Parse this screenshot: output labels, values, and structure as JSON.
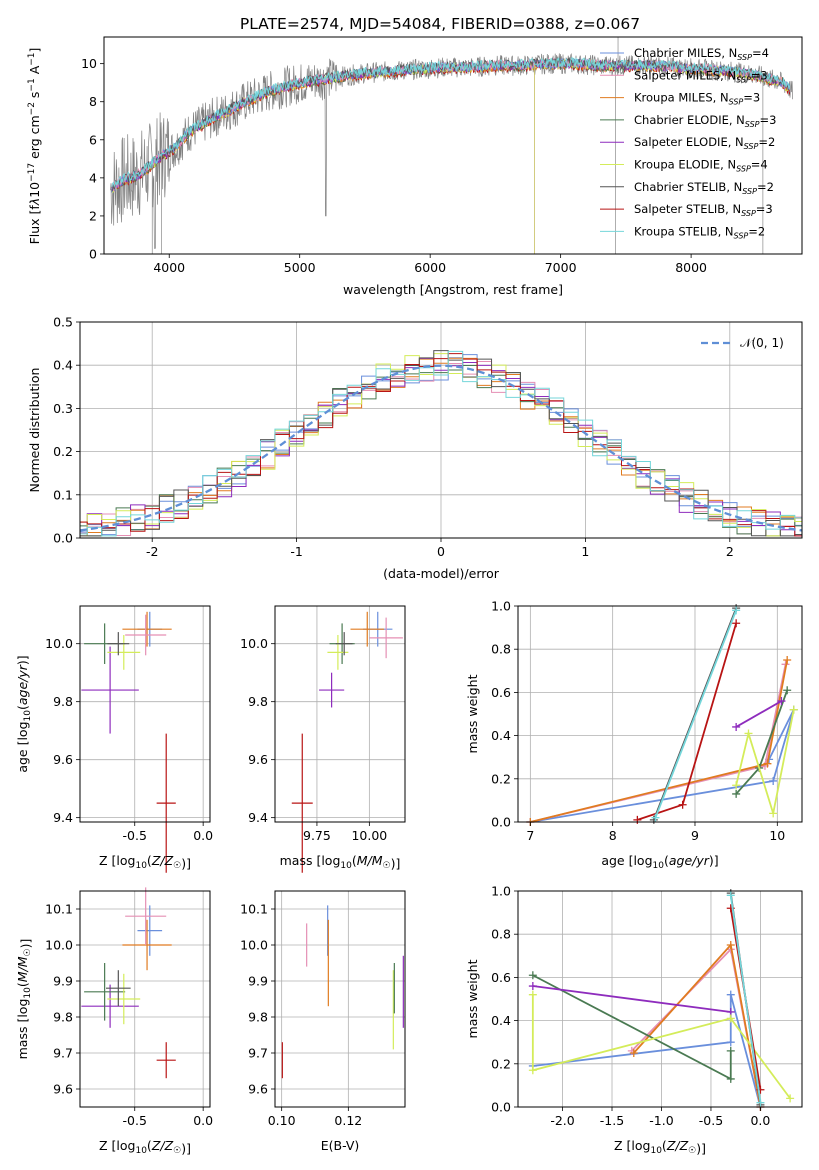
{
  "figure_title": "PLATE=2574, MJD=54084, FIBERID=0388, z=0.067",
  "colors": {
    "chabrier_miles": "#6a8fdc",
    "salpeter_miles": "#e58fb4",
    "kroupa_miles": "#e07b20",
    "chabrier_elodie": "#4a7a52",
    "salpeter_elodie": "#8e2cbd",
    "kroupa_elodie": "#d4ec5a",
    "chabrier_stelib": "#555555",
    "salpeter_stelib": "#b81414",
    "kroupa_stelib": "#74d6da",
    "data": "#808080"
  },
  "chart_data": [
    {
      "id": "spectrum",
      "type": "line",
      "xlabel": "wavelength [Angstrom, rest frame]",
      "ylabel": "Flux [f_λ10^-17 erg cm^-2 s^-1 A^-1]",
      "xlim": [
        3500,
        8850
      ],
      "ylim": [
        0,
        11.4
      ],
      "xticks": [
        4000,
        5000,
        6000,
        7000,
        8000
      ],
      "yticks": [
        0,
        2,
        4,
        6,
        8,
        10
      ],
      "legend": [
        {
          "label": "Chabrier MILES, N_SSP=4",
          "color_key": "chabrier_miles"
        },
        {
          "label": "Salpeter MILES, N_SSP=3",
          "color_key": "salpeter_miles"
        },
        {
          "label": "Kroupa MILES, N_SSP=3",
          "color_key": "kroupa_miles"
        },
        {
          "label": "Chabrier ELODIE, N_SSP=3",
          "color_key": "chabrier_elodie"
        },
        {
          "label": "Salpeter ELODIE, N_SSP=2",
          "color_key": "salpeter_elodie"
        },
        {
          "label": "Kroupa ELODIE, N_SSP=4",
          "color_key": "kroupa_elodie"
        },
        {
          "label": "Chabrier STELIB, N_SSP=2",
          "color_key": "chabrier_stelib"
        },
        {
          "label": "Salpeter STELIB, N_SSP=3",
          "color_key": "salpeter_stelib"
        },
        {
          "label": "Kroupa STELIB, N_SSP=2",
          "color_key": "kroupa_stelib"
        }
      ],
      "legend_placement": "upper right",
      "continuum": {
        "x": [
          3550,
          3650,
          3750,
          3850,
          3950,
          4050,
          4150,
          4250,
          4350,
          4450,
          4550,
          4650,
          4750,
          4850,
          4950,
          5100,
          5300,
          5500,
          5700,
          5900,
          6100,
          6300,
          6500,
          6700,
          6900,
          7100,
          7300,
          7500,
          7700,
          7900,
          8100,
          8300,
          8500,
          8700,
          8780
        ],
        "y": [
          3.4,
          3.9,
          4.1,
          4.6,
          5.2,
          5.6,
          6.4,
          6.8,
          7.2,
          7.5,
          7.9,
          8.2,
          8.5,
          8.7,
          8.9,
          9.1,
          9.3,
          9.5,
          9.6,
          9.7,
          9.8,
          9.8,
          9.9,
          9.9,
          10.0,
          10.0,
          9.9,
          9.9,
          9.9,
          9.8,
          9.7,
          9.6,
          9.4,
          9.0,
          8.5
        ]
      }
    },
    {
      "id": "residual_histogram",
      "type": "histogram",
      "xlabel": "(data-model)/error",
      "ylabel": "Normed distribution",
      "xlim": [
        -2.5,
        2.5
      ],
      "ylim": [
        0,
        0.5
      ],
      "xticks": [
        -2,
        -1,
        0,
        1,
        2
      ],
      "yticks": [
        0.0,
        0.1,
        0.2,
        0.3,
        0.4,
        0.5
      ],
      "grid": true,
      "legend": [
        {
          "label": "𝒩(0, 1)",
          "style": "dashed",
          "color_key": "chabrier_miles"
        }
      ],
      "legend_placement": "upper right",
      "bin_width": 0.1
    },
    {
      "id": "age_vs_Z",
      "type": "errorbar",
      "xlabel": "Z [log10(Z/Z☉)]",
      "ylabel": "age [log10(age/yr)]",
      "xlim": [
        -0.9,
        0.05
      ],
      "ylim": [
        9.385,
        10.13
      ],
      "xticks": [
        -0.5,
        0.0
      ],
      "yticks": [
        9.4,
        9.6,
        9.8,
        10.0
      ],
      "grid": true,
      "points": [
        {
          "c": "salpeter_stelib",
          "x": -0.27,
          "xe": 0.07,
          "y": 9.45,
          "ye": 0.24
        },
        {
          "c": "salpeter_elodie",
          "x": -0.68,
          "xe": 0.21,
          "y": 9.84,
          "ye": 0.15
        },
        {
          "c": "chabrier_elodie",
          "x": -0.72,
          "xe": 0.15,
          "y": 10.0,
          "ye": 0.07
        },
        {
          "c": "kroupa_elodie",
          "x": -0.58,
          "xe": 0.12,
          "y": 9.97,
          "ye": 0.06
        },
        {
          "c": "chabrier_stelib",
          "x": -0.62,
          "xe": 0.08,
          "y": 10.0,
          "ye": 0.04
        },
        {
          "c": "chabrier_miles",
          "x": -0.39,
          "xe": 0.09,
          "y": 10.05,
          "ye": 0.06
        },
        {
          "c": "kroupa_miles",
          "x": -0.41,
          "xe": 0.18,
          "y": 10.05,
          "ye": 0.06
        },
        {
          "c": "salpeter_miles",
          "x": -0.42,
          "xe": 0.15,
          "y": 10.03,
          "ye": 0.07
        }
      ]
    },
    {
      "id": "age_vs_mass",
      "type": "errorbar",
      "xlabel": "mass [log10(M/M☉)]",
      "ylabel": "",
      "xlim": [
        9.55,
        10.17
      ],
      "ylim": [
        9.385,
        10.13
      ],
      "xticks": [
        9.75,
        10.0
      ],
      "yticks": [
        9.4,
        9.6,
        9.8,
        10.0
      ],
      "grid": true,
      "points": [
        {
          "c": "salpeter_stelib",
          "x": 9.68,
          "xe": 0.05,
          "y": 9.45,
          "ye": 0.24
        },
        {
          "c": "salpeter_elodie",
          "x": 9.82,
          "xe": 0.06,
          "y": 9.84,
          "ye": 0.06
        },
        {
          "c": "chabrier_elodie",
          "x": 9.87,
          "xe": 0.06,
          "y": 10.0,
          "ye": 0.07
        },
        {
          "c": "kroupa_elodie",
          "x": 9.85,
          "xe": 0.05,
          "y": 9.97,
          "ye": 0.06
        },
        {
          "c": "chabrier_stelib",
          "x": 9.88,
          "xe": 0.04,
          "y": 10.0,
          "ye": 0.04
        },
        {
          "c": "chabrier_miles",
          "x": 10.04,
          "xe": 0.07,
          "y": 10.05,
          "ye": 0.06
        },
        {
          "c": "kroupa_miles",
          "x": 9.99,
          "xe": 0.08,
          "y": 10.05,
          "ye": 0.06
        },
        {
          "c": "salpeter_miles",
          "x": 10.08,
          "xe": 0.08,
          "y": 10.02,
          "ye": 0.07
        }
      ]
    },
    {
      "id": "weight_vs_age",
      "type": "line",
      "xlabel": "age [log10(age/yr)]",
      "ylabel": "mass weight",
      "xlim": [
        6.85,
        10.3
      ],
      "ylim": [
        0,
        1
      ],
      "xticks": [
        7,
        8,
        9,
        10
      ],
      "yticks": [
        0.0,
        0.2,
        0.4,
        0.6,
        0.8,
        1.0
      ],
      "grid": true,
      "series": [
        {
          "c": "chabrier_miles",
          "x": [
            7.0,
            9.95,
            10.2,
            9.9
          ],
          "y": [
            0.0,
            0.19,
            0.52,
            0.29
          ]
        },
        {
          "c": "salpeter_miles",
          "x": [
            7.0,
            9.85,
            10.1
          ],
          "y": [
            0.0,
            0.26,
            0.73
          ]
        },
        {
          "c": "kroupa_miles",
          "x": [
            7.0,
            9.88,
            10.12
          ],
          "y": [
            0.0,
            0.27,
            0.75
          ]
        },
        {
          "c": "chabrier_elodie",
          "x": [
            9.5,
            9.78,
            10.12
          ],
          "y": [
            0.13,
            0.25,
            0.61
          ]
        },
        {
          "c": "salpeter_elodie",
          "x": [
            9.5,
            10.05
          ],
          "y": [
            0.44,
            0.56
          ]
        },
        {
          "c": "kroupa_elodie",
          "x": [
            9.5,
            9.65,
            9.95,
            10.2
          ],
          "y": [
            0.17,
            0.41,
            0.04,
            0.52
          ]
        },
        {
          "c": "chabrier_stelib",
          "x": [
            8.5,
            9.5
          ],
          "y": [
            0.01,
            0.99
          ]
        },
        {
          "c": "salpeter_stelib",
          "x": [
            8.3,
            8.85,
            9.5
          ],
          "y": [
            0.01,
            0.08,
            0.92
          ]
        },
        {
          "c": "kroupa_stelib",
          "x": [
            8.52,
            9.5
          ],
          "y": [
            0.02,
            0.98
          ]
        }
      ]
    },
    {
      "id": "mass_vs_Z",
      "type": "errorbar",
      "xlabel": "Z [log10(Z/Z☉)]",
      "ylabel": "mass [log10(M/M☉)]",
      "xlim": [
        -0.9,
        0.05
      ],
      "ylim": [
        9.55,
        10.15
      ],
      "xticks": [
        -0.5,
        0.0
      ],
      "yticks": [
        9.6,
        9.7,
        9.8,
        9.9,
        10.0,
        10.1
      ],
      "grid": true,
      "points": [
        {
          "c": "salpeter_stelib",
          "x": -0.27,
          "xe": 0.07,
          "y": 9.68,
          "ye": 0.05
        },
        {
          "c": "salpeter_elodie",
          "x": -0.68,
          "xe": 0.21,
          "y": 9.83,
          "ye": 0.06
        },
        {
          "c": "chabrier_elodie",
          "x": -0.72,
          "xe": 0.15,
          "y": 9.87,
          "ye": 0.08
        },
        {
          "c": "kroupa_elodie",
          "x": -0.58,
          "xe": 0.12,
          "y": 9.85,
          "ye": 0.07
        },
        {
          "c": "chabrier_stelib",
          "x": -0.62,
          "xe": 0.09,
          "y": 9.88,
          "ye": 0.05
        },
        {
          "c": "chabrier_miles",
          "x": -0.39,
          "xe": 0.09,
          "y": 10.04,
          "ye": 0.07
        },
        {
          "c": "kroupa_miles",
          "x": -0.41,
          "xe": 0.18,
          "y": 10.0,
          "ye": 0.07
        },
        {
          "c": "salpeter_miles",
          "x": -0.42,
          "xe": 0.15,
          "y": 10.08,
          "ye": 0.08
        }
      ]
    },
    {
      "id": "mass_vs_ebv",
      "type": "errorbar",
      "xlabel": "E(B-V)",
      "ylabel": "",
      "xlim": [
        0.098,
        0.137
      ],
      "ylim": [
        9.55,
        10.15
      ],
      "xticks": [
        0.1,
        0.12
      ],
      "yticks": [
        9.6,
        9.7,
        9.8,
        9.9,
        10.0,
        10.1
      ],
      "grid": true,
      "points": [
        {
          "c": "salpeter_stelib",
          "x": 0.1002,
          "y": 9.68,
          "ye": 0.05
        },
        {
          "c": "salpeter_miles",
          "x": 0.1075,
          "y": 10.0,
          "ye": 0.06
        },
        {
          "c": "chabrier_miles",
          "x": 0.1138,
          "y": 10.04,
          "ye": 0.07
        },
        {
          "c": "kroupa_miles",
          "x": 0.114,
          "y": 9.95,
          "ye": 0.12
        },
        {
          "c": "kroupa_elodie",
          "x": 0.1335,
          "y": 9.82,
          "ye": 0.11
        },
        {
          "c": "chabrier_elodie",
          "x": 0.1338,
          "y": 9.88,
          "ye": 0.07
        },
        {
          "c": "salpeter_elodie",
          "x": 0.1365,
          "y": 9.87,
          "ye": 0.1
        }
      ]
    },
    {
      "id": "weight_vs_Z",
      "type": "line",
      "xlabel": "Z [log10(Z/Z☉)]",
      "ylabel": "mass weight",
      "xlim": [
        -2.45,
        0.42
      ],
      "ylim": [
        0,
        1
      ],
      "xticks": [
        -2.0,
        -1.5,
        -1.0,
        -0.5,
        0.0
      ],
      "yticks": [
        0.0,
        0.2,
        0.4,
        0.6,
        0.8,
        1.0
      ],
      "grid": true,
      "series": [
        {
          "c": "chabrier_miles",
          "x": [
            -2.3,
            -0.3,
            -0.3,
            0.0
          ],
          "y": [
            0.19,
            0.3,
            0.52,
            0.0
          ]
        },
        {
          "c": "salpeter_miles",
          "x": [
            -1.3,
            -0.3,
            0.0
          ],
          "y": [
            0.26,
            0.73,
            0.0
          ]
        },
        {
          "c": "kroupa_miles",
          "x": [
            -1.28,
            -0.3,
            0.0
          ],
          "y": [
            0.25,
            0.75,
            0.0
          ]
        },
        {
          "c": "chabrier_elodie",
          "x": [
            -2.3,
            -0.3,
            -0.3
          ],
          "y": [
            0.61,
            0.13,
            0.26
          ]
        },
        {
          "c": "salpeter_elodie",
          "x": [
            -2.3,
            -0.3
          ],
          "y": [
            0.56,
            0.44
          ]
        },
        {
          "c": "kroupa_elodie",
          "x": [
            -2.3,
            -2.3,
            -0.3,
            0.3
          ],
          "y": [
            0.52,
            0.17,
            0.41,
            0.04
          ]
        },
        {
          "c": "chabrier_stelib",
          "x": [
            -0.3,
            0.0
          ],
          "y": [
            0.99,
            0.01
          ]
        },
        {
          "c": "salpeter_stelib",
          "x": [
            -0.3,
            0.0
          ],
          "y": [
            0.92,
            0.08
          ]
        },
        {
          "c": "kroupa_stelib",
          "x": [
            -0.3,
            0.0
          ],
          "y": [
            0.98,
            0.02
          ]
        }
      ]
    }
  ]
}
